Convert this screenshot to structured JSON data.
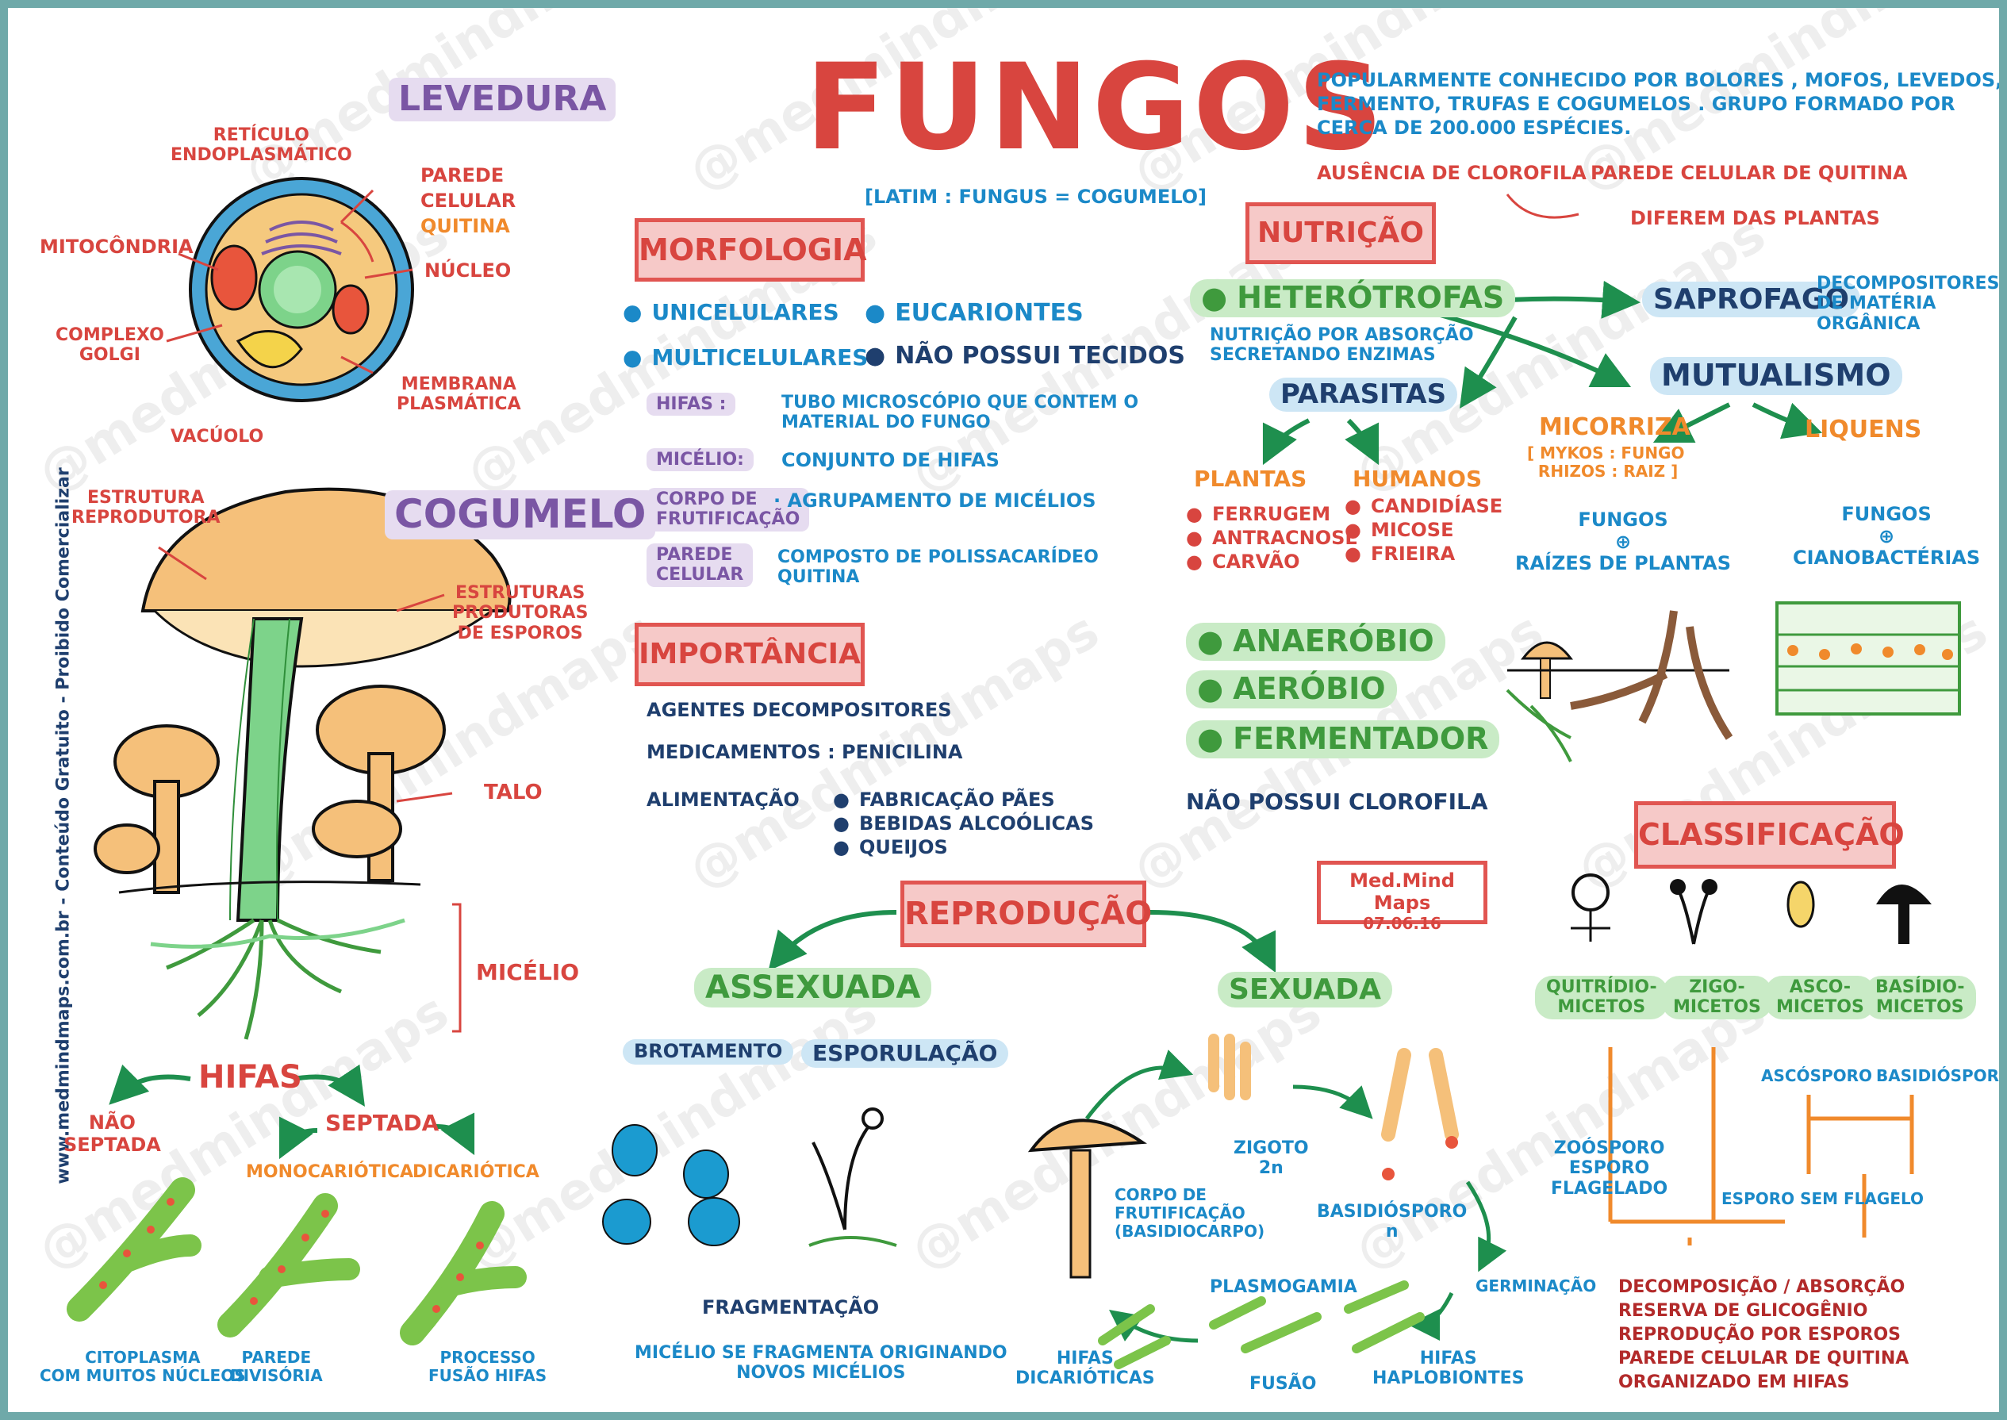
{
  "title": "FUNGOS",
  "subtitle": "[LATIM : FUNGUS = COGUMELO]",
  "intro": {
    "line1": "POPULARMENTE CONHECIDO POR BOLORES , MOFOS, LEVEDOS,",
    "line2": "FERMENTO, TRUFAS E COGUMELOS . GRUPO FORMADO POR",
    "line3": "CERCA DE 200.000 ESPÉCIES.",
    "absence": "AUSÊNCIA DE CLOROFILA",
    "wall": "PAREDE CELULAR DE QUITINA",
    "differ": "DIFEREM DAS PLANTAS"
  },
  "watermark": "@medmindmaps",
  "side_text": "www.medmindmaps.com.br  -  Conteúdo Gratuito  -  Proibido Comercializar",
  "levedura": {
    "title": "LEVEDURA",
    "labels": {
      "reticulo": "RETÍCULO\nENDOPLASMÁTICO",
      "parede_a": "PAREDE",
      "parede_b": "CELULAR",
      "parede_c": "QUITINA",
      "mitocondria": "MITOCÔNDRIA",
      "nucleo": "NÚCLEO",
      "complexo": "COMPLEXO\nGOLGI",
      "membrana": "MEMBRANA\nPLASMÁTICA",
      "vacuolo": "VACÚOLO"
    }
  },
  "cogumelo": {
    "title": "COGUMELO",
    "labels": {
      "estrutura": "ESTRUTURA\nREPRODUTORA",
      "estruturas": "ESTRUTURAS\nPRODUTORAS\nDE ESPOROS",
      "talo": "TALO",
      "micelio": "MICÉLIO"
    }
  },
  "hifas": {
    "title": "HIFAS",
    "nao_septada": "NÃO\nSEPTADA",
    "septada": "SEPTADA",
    "mono": "MONOCARIÓTICA",
    "dica": "DICARIÓTICA",
    "citoplasma": "CITOPLASMA\nCOM MUITOS NÚCLEOS",
    "parede": "PAREDE\nDIVISÓRIA",
    "processo": "PROCESSO\nFUSÃO HIFAS"
  },
  "morfologia": {
    "title": "MORFOLOGIA",
    "unicelulares": "UNICELULARES",
    "multicelulares": "MULTICELULARES",
    "eucariontes": "EUCARIONTES",
    "nao_tecidos": "NÃO POSSUI TECIDOS",
    "defs": [
      {
        "term": "HIFAS :",
        "desc": "TUBO MICROSCÓPIO QUE CONTEM O\nMATERIAL DO FUNGO"
      },
      {
        "term": "MICÉLIO:",
        "desc": "CONJUNTO DE HIFAS"
      },
      {
        "term": "CORPO DE\nFRUTIFICAÇÃO",
        "desc": "· AGRUPAMENTO DE MICÉLIOS"
      },
      {
        "term": "PAREDE\nCELULAR",
        "desc": "COMPOSTO DE POLISSACARÍDEO\nQUITINA"
      }
    ]
  },
  "importancia": {
    "title": "IMPORTÂNCIA",
    "agentes": "AGENTES DECOMPOSITORES",
    "medicamentos": "MEDICAMENTOS : PENICILINA",
    "alimentacao": "ALIMENTAÇÃO",
    "items": [
      "FABRICAÇÃO PÃES",
      "BEBIDAS ALCOÓLICAS",
      "QUEIJOS"
    ]
  },
  "nutricao": {
    "title": "NUTRIÇÃO",
    "heterotrofas": "HETERÓTROFAS",
    "absorcao": "NUTRIÇÃO POR ABSORÇÃO\nSECRETANDO ENZIMAS",
    "parasitas": "PARASITAS",
    "saprofago": "SAPROFAGO",
    "decompositores": "DECOMPOSITORES\nDE MATÉRIA\nORGÂNICA",
    "mutualismo": "MUTUALISMO",
    "plantas": "PLANTAS",
    "plantas_items": [
      "FERRUGEM",
      "ANTRACNOSE",
      "CARVÃO"
    ],
    "humanos": "HUMANOS",
    "humanos_items": [
      "CANDIDÍASE",
      "MICOSE",
      "FRIEIRA"
    ],
    "micorriza": "MICORRIZA",
    "micorriza_note": "[ MYKOS : FUNGO\n  RHIZOS : RAIZ ]",
    "liquens": "LIQUENS",
    "fungos_raizes": "FUNGOS\n⊕\nRAÍZES DE PLANTAS",
    "fungos_ciano": "FUNGOS\n⊕\nCIANOBACTÉRIAS"
  },
  "metabolism": {
    "anaerobio": "ANAERÓBIO",
    "aerobio": "AERÓBIO",
    "fermentador": "FERMENTADOR",
    "clorofila": "NÃO POSSUI CLOROFILA"
  },
  "stamp": {
    "line1": "Med.Mind Maps",
    "line2": "07.06.16"
  },
  "reproducao": {
    "title": "REPRODUÇÃO",
    "assexuada": "ASSEXUADA",
    "sexuada": "SEXUADA",
    "brotamento": "BROTAMENTO",
    "esporulacao": "ESPORULAÇÃO",
    "fragmentacao": "FRAGMENTAÇÃO",
    "frag_desc": "MICÉLIO SE FRAGMENTA ORIGINANDO\nNOVOS MICÉLIOS",
    "zigoto": "ZIGOTO\n2n",
    "corpo": "CORPO DE\nFRUTIFICAÇÃO\n(BASIDIOCARPO)",
    "basidiosporo": "BASIDIÓSPORO\nn",
    "germinacao": "GERMINAÇÃO",
    "plasmogamia": "PLASMOGAMIA",
    "hifas_dica": "HIFAS\nDICARIÓTICAS",
    "fusao": "FUSÃO",
    "hifas_haplo": "HIFAS\nHAPLOBIONTES"
  },
  "classificacao": {
    "title": "CLASSIFICAÇÃO",
    "groups": [
      "QUITRÍDIO-\nMICETOS",
      "ZIGO-\nMICETOS",
      "ASCO-\nMICETOS",
      "BASÍDIO-\nMICETOS"
    ],
    "ascosporo": "ASCÓSPORO",
    "basidiosporo": "BASIDIÓSPORO",
    "zoosporo": "ZOÓSPORO\nESPORO\nFLAGELADO",
    "esporo_sem": "ESPORO SEM FLAGELO",
    "summary": [
      "DECOMPOSIÇÃO / ABSORÇÃO",
      "RESERVA DE GLICOGÊNIO",
      "REPRODUÇÃO POR ESPOROS",
      "PAREDE CELULAR DE QUITINA",
      "ORGANIZADO EM HIFAS"
    ]
  }
}
